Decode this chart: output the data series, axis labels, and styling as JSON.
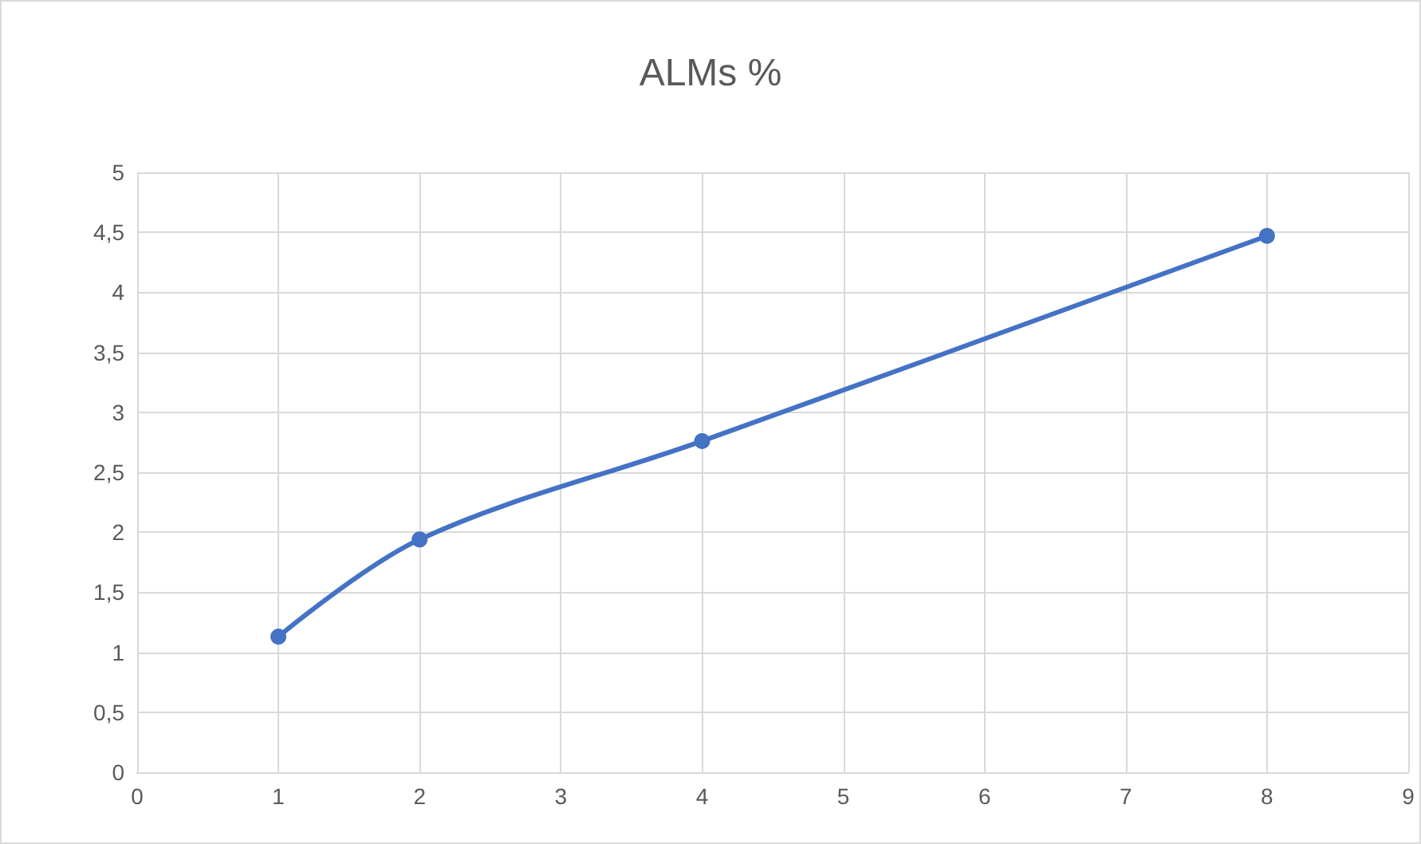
{
  "chart_data": {
    "type": "line",
    "title": "ALMs %",
    "x": [
      1,
      2,
      4,
      8
    ],
    "series": [
      {
        "color": "#4472c4",
        "values": [
          1.13,
          1.94,
          2.76,
          4.47
        ]
      }
    ],
    "xlim": [
      0,
      9
    ],
    "xticks": [
      0,
      1,
      2,
      3,
      4,
      5,
      6,
      7,
      8,
      9
    ],
    "ylim": [
      0,
      5
    ],
    "yticks": [
      0,
      {
        "value": 0.5,
        "label": "0,5"
      },
      1,
      {
        "value": 1.5,
        "label": "1,5"
      },
      2,
      {
        "value": 2.5,
        "label": "2,5"
      },
      3,
      {
        "value": 3.5,
        "label": "3,5"
      },
      4,
      {
        "value": 4.5,
        "label": "4,5"
      },
      5
    ],
    "grid": true,
    "marker": "circle",
    "line_style": "solid"
  }
}
